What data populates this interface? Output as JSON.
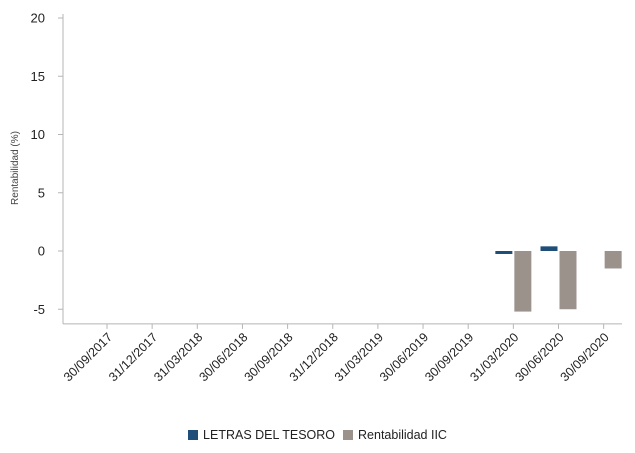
{
  "chart_data": {
    "type": "bar",
    "title": "",
    "xlabel": "",
    "ylabel": "Rentabilidad (%)",
    "ylim": [
      -6,
      20
    ],
    "yticks": [
      20,
      15,
      10,
      5,
      0,
      -5
    ],
    "grid": false,
    "legend_position": "bottom",
    "categories": [
      "30/09/2017",
      "31/12/2017",
      "31/03/2018",
      "30/06/2018",
      "30/09/2018",
      "31/12/2018",
      "31/03/2019",
      "30/06/2019",
      "30/09/2019",
      "31/03/2020",
      "30/06/2020",
      "30/09/2020"
    ],
    "series": [
      {
        "name": "LETRAS DEL TESORO",
        "color": "#1f4e79",
        "values": [
          null,
          null,
          null,
          null,
          null,
          null,
          null,
          null,
          null,
          -0.2,
          0.4,
          null
        ]
      },
      {
        "name": "Rentabilidad IIC",
        "color": "#9b928b",
        "values": [
          null,
          null,
          null,
          null,
          null,
          null,
          null,
          null,
          null,
          -5.2,
          -5.0,
          -1.5
        ]
      }
    ]
  }
}
